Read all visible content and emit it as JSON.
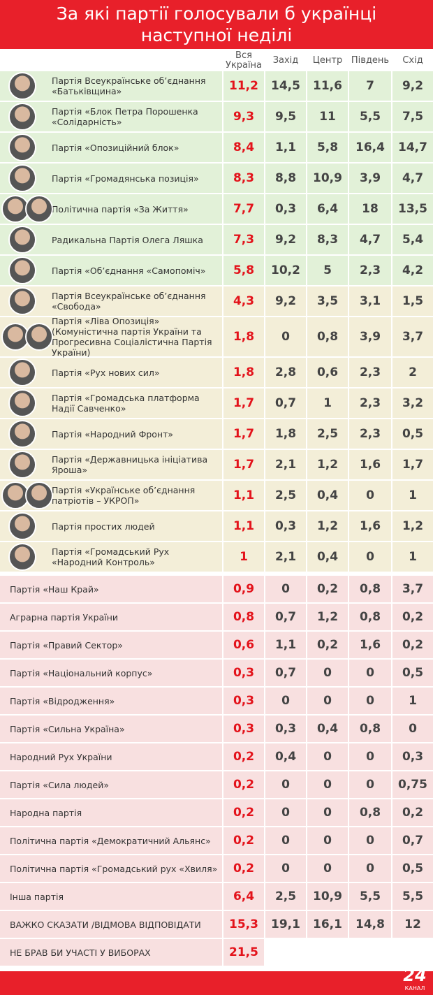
{
  "header": {
    "title": "За які партії голосували б українці наступної неділі"
  },
  "table": {
    "columns": [
      "Вся Україна",
      "Захід",
      "Центр",
      "Південь",
      "Схід"
    ],
    "rows": [
      {
        "name": "Партія Всеукраїнське об’єднання «Батьківщина»",
        "values": [
          "11,2",
          "14,5",
          "11,6",
          "7",
          "9,2"
        ]
      },
      {
        "name": "Партія «Блок Петра Порошенка «Солідарність»",
        "values": [
          "9,3",
          "9,5",
          "11",
          "5,5",
          "7,5"
        ]
      },
      {
        "name": "Партія «Опозиційний блок»",
        "values": [
          "8,4",
          "1,1",
          "5,8",
          "16,4",
          "14,7"
        ]
      },
      {
        "name": "Партія «Громадянська позиція»",
        "values": [
          "8,3",
          "8,8",
          "10,9",
          "3,9",
          "4,7"
        ]
      },
      {
        "name": "Політична партія «За Життя»",
        "values": [
          "7,7",
          "0,3",
          "6,4",
          "18",
          "13,5"
        ]
      },
      {
        "name": "Радикальна Партія Олега Ляшка",
        "values": [
          "7,3",
          "9,2",
          "8,3",
          "4,7",
          "5,4"
        ]
      },
      {
        "name": "Партія «Об’єднання «Самопоміч»",
        "values": [
          "5,8",
          "10,2",
          "5",
          "2,3",
          "4,2"
        ]
      },
      {
        "name": "Партія Всеукраїнське об’єднання «Свобода»",
        "values": [
          "4,3",
          "9,2",
          "3,5",
          "3,1",
          "1,5"
        ]
      },
      {
        "name": "Партія «Ліва Опозиція» (Комуністична партія України та Прогресивна Соціалістична Партія України)",
        "values": [
          "1,8",
          "0",
          "0,8",
          "3,9",
          "3,7"
        ]
      },
      {
        "name": "Партія «Рух нових сил»",
        "values": [
          "1,8",
          "2,8",
          "0,6",
          "2,3",
          "2"
        ]
      },
      {
        "name": "Партія «Громадська платформа Надії Савченко»",
        "values": [
          "1,7",
          "0,7",
          "1",
          "2,3",
          "3,2"
        ]
      },
      {
        "name": "Партія «Народний Фронт»",
        "values": [
          "1,7",
          "1,8",
          "2,5",
          "2,3",
          "0,5"
        ]
      },
      {
        "name": "Партія «Державницька ініціатива Яроша»",
        "values": [
          "1,7",
          "2,1",
          "1,2",
          "1,6",
          "1,7"
        ]
      },
      {
        "name": "Партія «Українське об’єднання патріотів – УКРОП»",
        "values": [
          "1,1",
          "2,5",
          "0,4",
          "0",
          "1"
        ]
      },
      {
        "name": "Партія простих людей",
        "values": [
          "1,1",
          "0,3",
          "1,2",
          "1,6",
          "1,2"
        ]
      },
      {
        "name": "Партія «Громадський Рух «Народний Контроль»",
        "values": [
          "1",
          "2,1",
          "0,4",
          "0",
          "1"
        ]
      },
      {
        "name": "Партія «Наш Край»",
        "values": [
          "0,9",
          "0",
          "0,2",
          "0,8",
          "3,7"
        ]
      },
      {
        "name": "Аграрна партія України",
        "values": [
          "0,8",
          "0,7",
          "1,2",
          "0,8",
          "0,2"
        ]
      },
      {
        "name": "Партія «Правий Сектор»",
        "values": [
          "0,6",
          "1,1",
          "0,2",
          "1,6",
          "0,2"
        ]
      },
      {
        "name": "Партія «Національний корпус»",
        "values": [
          "0,3",
          "0,7",
          "0",
          "0",
          "0,5"
        ]
      },
      {
        "name": "Партія «Відродження»",
        "values": [
          "0,3",
          "0",
          "0",
          "0",
          "1"
        ]
      },
      {
        "name": "Партія «Сильна Україна»",
        "values": [
          "0,3",
          "0,3",
          "0,4",
          "0,8",
          "0"
        ]
      },
      {
        "name": "Народний Рух України",
        "values": [
          "0,2",
          "0,4",
          "0",
          "0",
          "0,3"
        ]
      },
      {
        "name": "Партія «Сила людей»",
        "values": [
          "0,2",
          "0",
          "0",
          "0",
          "0,75"
        ]
      },
      {
        "name": "Народна партія",
        "values": [
          "0,2",
          "0",
          "0",
          "0,8",
          "0,2"
        ]
      },
      {
        "name": "Політична партія «Демократичний Альянс»",
        "values": [
          "0,2",
          "0",
          "0",
          "0",
          "0,7"
        ]
      },
      {
        "name": "Політична партія «Громадський рух «Хвиля»",
        "values": [
          "0,2",
          "0",
          "0",
          "0",
          "0,5"
        ]
      },
      {
        "name": "Інша партія",
        "values": [
          "6,4",
          "2,5",
          "10,9",
          "5,5",
          "5,5"
        ]
      },
      {
        "name": "ВАЖКО СКАЗАТИ /ВІДМОВА ВІДПОВІДАТИ",
        "values": [
          "15,3",
          "19,1",
          "16,1",
          "14,8",
          "12"
        ]
      },
      {
        "name": "НЕ БРАВ БИ УЧАСТІ У ВИБОРАХ",
        "values": [
          "21,5"
        ]
      }
    ]
  },
  "footer": {
    "logo_number": "24",
    "logo_text": "КАНАЛ"
  }
}
